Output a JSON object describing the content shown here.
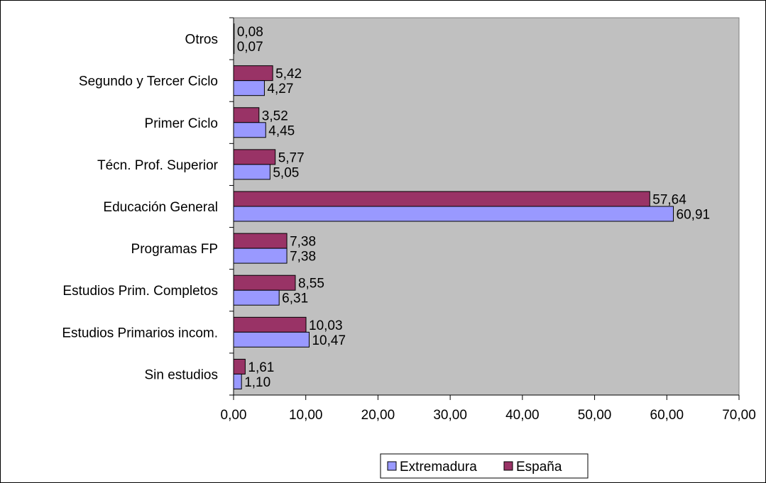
{
  "chart_data": {
    "type": "bar",
    "orientation": "horizontal",
    "categories": [
      "Sin estudios",
      "Estudios Primarios incom.",
      "Estudios Prim. Completos",
      "Programas FP",
      "Educación General",
      "Técn. Prof. Superior",
      "Primer Ciclo",
      "Segundo y Tercer Ciclo",
      "Otros"
    ],
    "series": [
      {
        "name": "Extremadura",
        "values": [
          1.1,
          10.47,
          6.31,
          7.38,
          60.91,
          5.05,
          4.45,
          4.27,
          0.07
        ],
        "labels": [
          "1,10",
          "10,47",
          "6,31",
          "7,38",
          "60,91",
          "5,05",
          "4,45",
          "4,27",
          "0,07"
        ],
        "color": "#9999FF"
      },
      {
        "name": "España",
        "values": [
          1.61,
          10.03,
          8.55,
          7.38,
          57.64,
          5.77,
          3.52,
          5.42,
          0.08
        ],
        "labels": [
          "1,61",
          "10,03",
          "8,55",
          "7,38",
          "57,64",
          "5,77",
          "3,52",
          "5,42",
          "0,08"
        ],
        "color": "#993366"
      }
    ],
    "xlim": [
      0,
      70
    ],
    "x_ticks": [
      0,
      10,
      20,
      30,
      40,
      50,
      60,
      70
    ],
    "x_tick_labels": [
      "0,00",
      "10,00",
      "20,00",
      "30,00",
      "40,00",
      "50,00",
      "60,00",
      "70,00"
    ],
    "plot_background": "#C0C0C0",
    "grid": false,
    "legend_position": "bottom",
    "title": "",
    "xlabel": "",
    "ylabel": ""
  }
}
